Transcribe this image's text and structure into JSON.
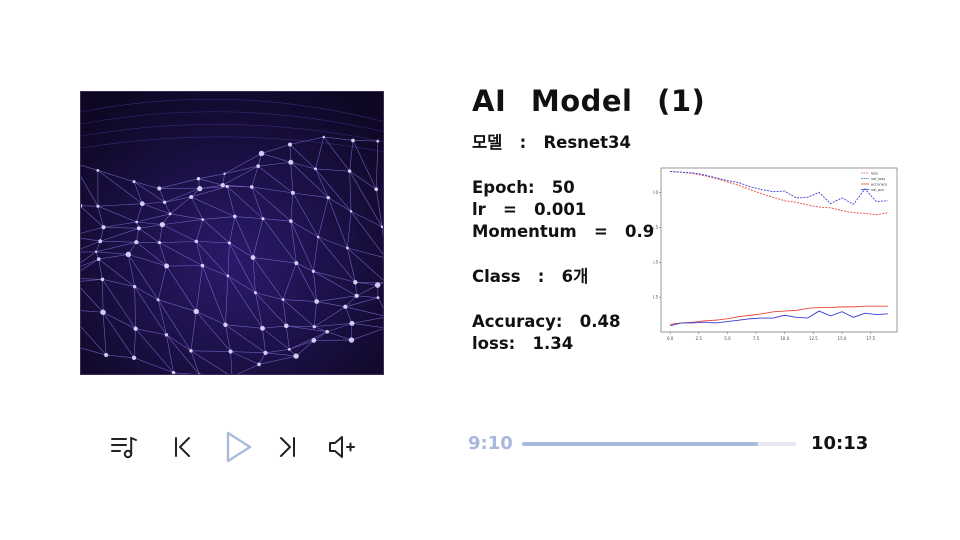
{
  "title": "AI Model (1)",
  "model": {
    "label": "모델",
    "sep": ":",
    "value": "Resnet34"
  },
  "epoch": {
    "label": "Epoch:",
    "value": "50"
  },
  "lr": {
    "label": "lr",
    "sep": "=",
    "value": "0.001"
  },
  "momentum": {
    "label": "Momentum",
    "sep": "=",
    "value": "0.9"
  },
  "class": {
    "label": "Class",
    "sep": ":",
    "value": "6개"
  },
  "accuracy": {
    "label": "Accuracy:",
    "value": "0.48"
  },
  "loss": {
    "label": "loss:",
    "value": "1.34"
  },
  "player": {
    "current_time": "9:10",
    "total_time": "10:13",
    "progress": 0.86,
    "icons": [
      "playlist-icon",
      "previous-icon",
      "play-icon",
      "next-icon",
      "volume-up-icon"
    ]
  },
  "colors": {
    "accent": "#a9bbdc",
    "play": "#a9bbdc",
    "red_series": "#e8493a",
    "blue_series": "#3b3bd8",
    "cover_bg": "#120a2c"
  },
  "chart_data": {
    "type": "line",
    "x": [
      0,
      1,
      2,
      3,
      4,
      5,
      6,
      7,
      8,
      9,
      10,
      11,
      12,
      13,
      14,
      15,
      16,
      17,
      18,
      19
    ],
    "xticks": [
      "0.0",
      "2.5",
      "5.0",
      "7.5",
      "10.0",
      "12.5",
      "15.0",
      "17.5"
    ],
    "yticks": [
      "0.5",
      "1.0",
      "1.5",
      "2.0"
    ],
    "ylim": [
      0,
      2.35
    ],
    "xlim": [
      -0.8,
      19.8
    ],
    "series": [
      {
        "name": "loss",
        "color": "#e8493a",
        "style": "dashed",
        "values": [
          2.3,
          2.29,
          2.27,
          2.24,
          2.2,
          2.15,
          2.1,
          2.04,
          1.98,
          1.93,
          1.88,
          1.86,
          1.82,
          1.79,
          1.78,
          1.74,
          1.71,
          1.7,
          1.68,
          1.71
        ]
      },
      {
        "name": "val_loss",
        "color": "#3b3bd8",
        "style": "dashed",
        "values": [
          2.3,
          2.29,
          2.28,
          2.25,
          2.21,
          2.17,
          2.14,
          2.08,
          2.04,
          2.01,
          2.02,
          1.92,
          1.93,
          2.0,
          1.84,
          1.92,
          1.83,
          2.05,
          1.87,
          1.88
        ]
      },
      {
        "name": "accuracy",
        "color": "#e8493a",
        "style": "solid",
        "values": [
          0.11,
          0.13,
          0.14,
          0.16,
          0.17,
          0.19,
          0.22,
          0.24,
          0.26,
          0.29,
          0.3,
          0.31,
          0.34,
          0.35,
          0.35,
          0.36,
          0.36,
          0.37,
          0.37,
          0.37
        ]
      },
      {
        "name": "val_acc",
        "color": "#3b3bd8",
        "style": "solid",
        "values": [
          0.09,
          0.13,
          0.13,
          0.14,
          0.13,
          0.15,
          0.17,
          0.19,
          0.2,
          0.2,
          0.24,
          0.21,
          0.2,
          0.3,
          0.23,
          0.29,
          0.21,
          0.27,
          0.25,
          0.26
        ]
      }
    ],
    "legend_placement": "top-right"
  }
}
